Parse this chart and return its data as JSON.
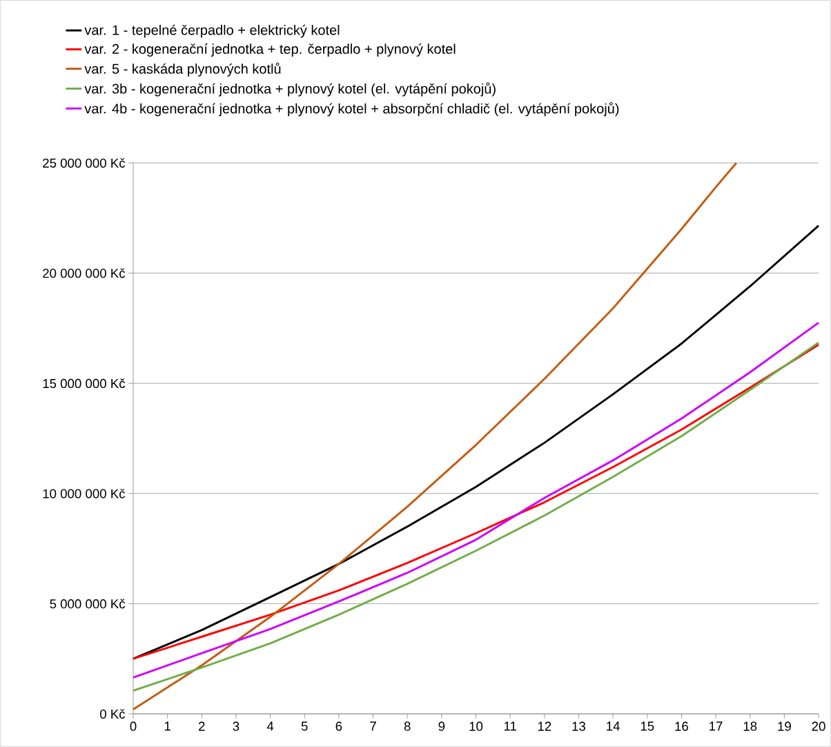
{
  "chart_data": {
    "type": "line",
    "x": [
      0,
      2,
      4,
      6,
      8,
      10,
      12,
      14,
      16,
      18,
      20
    ],
    "series": [
      {
        "name": "var. 1 - tepelné čerpadlo + elektrický kotel",
        "color": "#000000",
        "values": [
          2500000,
          3800000,
          5300000,
          6800000,
          8500000,
          10300000,
          12300000,
          14500000,
          16800000,
          19400000,
          22150000
        ]
      },
      {
        "name": "var. 2 - kogenerační jednotka + tep. čerpadlo + plynový kotel",
        "color": "#ff0000",
        "values": [
          2500000,
          3500000,
          4500000,
          5600000,
          6850000,
          8200000,
          9600000,
          11200000,
          12900000,
          14800000,
          16750000
        ]
      },
      {
        "name": "var. 5 - kaskáda plynových kotlů",
        "color": "#c55a11",
        "x": [
          0,
          2,
          4,
          6,
          8,
          10,
          12,
          14,
          15,
          16,
          17,
          17.6
        ],
        "values": [
          200000,
          2200000,
          4400000,
          6800000,
          9400000,
          12200000,
          15200000,
          18400000,
          20200000,
          22000000,
          23900000,
          25000000
        ]
      },
      {
        "name": "var. 3b - kogenerační jednotka + plynový kotel (el. vytápění pokojů)",
        "color": "#70ad47",
        "values": [
          1050000,
          2100000,
          3200000,
          4500000,
          5900000,
          7400000,
          9000000,
          10750000,
          12600000,
          14700000,
          16850000
        ]
      },
      {
        "name": "var. 4b - kogenerační jednotka + plynový kotel + absorpční chladič (el. vytápění pokojů)",
        "color": "#cc00ff",
        "values": [
          1650000,
          2750000,
          3850000,
          5100000,
          6400000,
          7900000,
          9800000,
          11500000,
          13400000,
          15500000,
          17750000
        ]
      }
    ],
    "xlim": [
      0,
      20
    ],
    "xticks": [
      0,
      1,
      2,
      3,
      4,
      5,
      6,
      7,
      8,
      9,
      10,
      11,
      12,
      13,
      14,
      15,
      16,
      17,
      18,
      19,
      20
    ],
    "ylim": [
      0,
      25000000
    ],
    "yticks": [
      {
        "value": 0,
        "label": "0 Kč"
      },
      {
        "value": 5000000,
        "label": "5 000 000 Kč"
      },
      {
        "value": 10000000,
        "label": "10 000 000 Kč"
      },
      {
        "value": 15000000,
        "label": "15 000 000 Kč"
      },
      {
        "value": 20000000,
        "label": "20 000 000 Kč"
      },
      {
        "value": 25000000,
        "label": "25 000 000 Kč"
      }
    ],
    "grid": "y",
    "legend": "top",
    "marker": "none",
    "line_style": "solid"
  }
}
